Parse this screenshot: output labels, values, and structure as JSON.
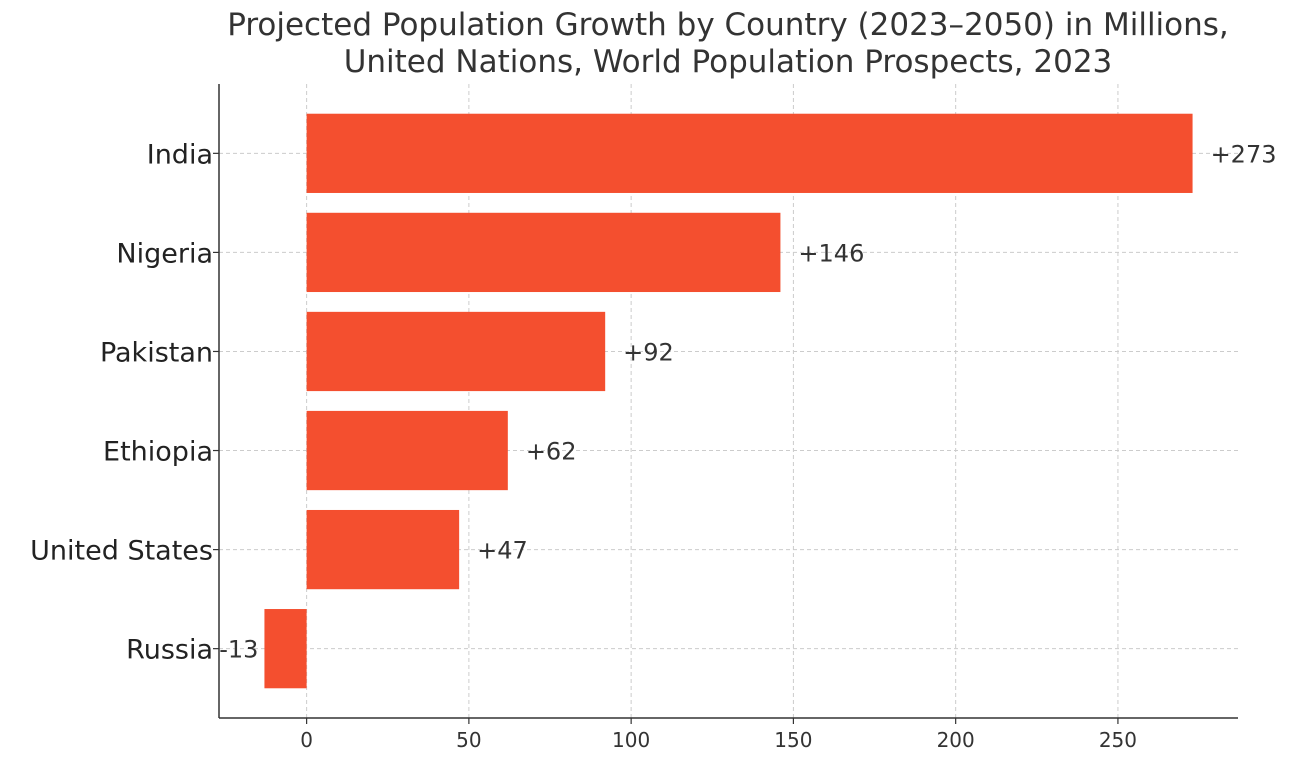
{
  "chart_data": {
    "type": "bar",
    "orientation": "horizontal",
    "title": "Projected Population Growth by Country (2023–2050) in Millions,",
    "subtitle": "United Nations, World Population Prospects, 2023",
    "xlabel": "",
    "ylabel": "",
    "categories": [
      "India",
      "Nigeria",
      "Pakistan",
      "Ethiopia",
      "United States",
      "Russia"
    ],
    "values": [
      273,
      146,
      92,
      62,
      47,
      -13
    ],
    "data_labels": [
      "+273",
      "+146",
      "+92",
      "+62",
      "+47",
      "-13"
    ],
    "x_ticks": [
      0,
      50,
      100,
      150,
      200,
      250
    ],
    "xlim": [
      -27,
      287
    ],
    "grid": true,
    "legend": "none",
    "bar_color": "#f44f2f"
  }
}
